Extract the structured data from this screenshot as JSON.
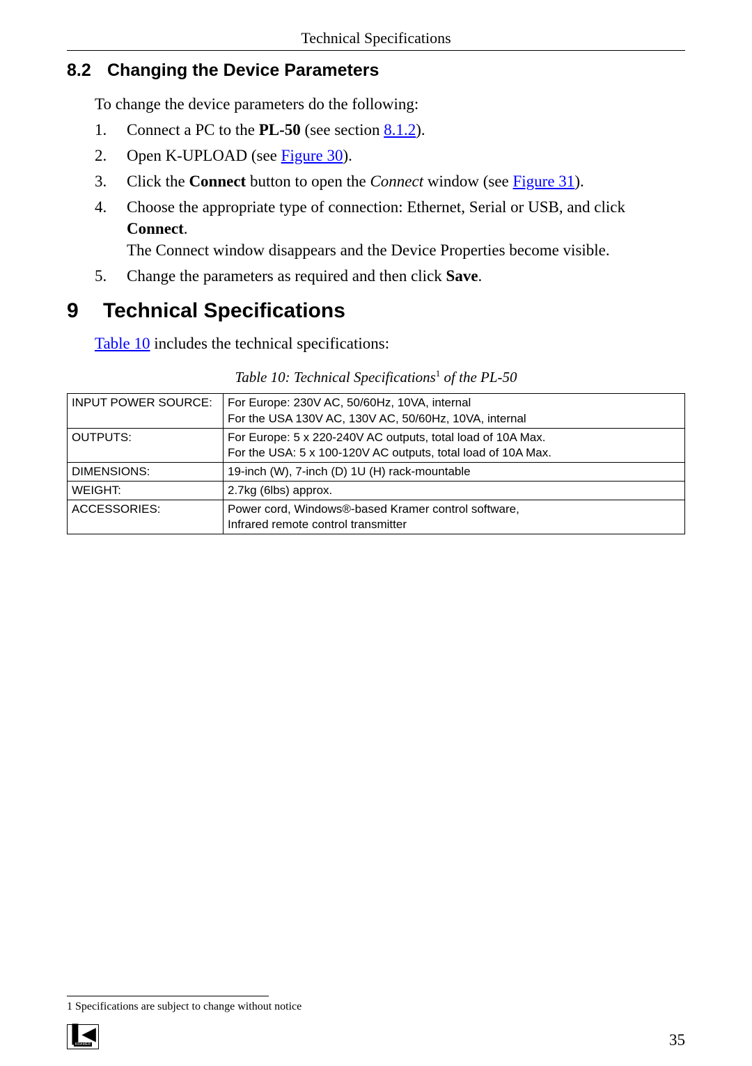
{
  "header": {
    "title": "Technical Specifications"
  },
  "section82": {
    "number": "8.2",
    "title": "Changing the Device Parameters"
  },
  "intro82": "To change the device parameters do the following:",
  "steps": [
    {
      "num": "1.",
      "pre": "Connect a PC to the ",
      "bold": "PL-50",
      "mid": " (see section ",
      "link": "8.1.2",
      "post": ")."
    },
    {
      "num": "2.",
      "pre": "Open K-UPLOAD (see ",
      "link": "Figure 30",
      "post": ")."
    },
    {
      "num": "3.",
      "pre": "Click the ",
      "bold": "Connect",
      "mid": " button to open the ",
      "italic": "Connect",
      "mid2": " window (see ",
      "link": "Figure 31",
      "post": ")."
    },
    {
      "num": "4.",
      "line1pre": "Choose the appropriate type of connection: Ethernet, Serial or USB, and click ",
      "line1bold": "Connect",
      "line1post": ".",
      "line2": "The Connect window disappears and the Device Properties become visible."
    },
    {
      "num": "5.",
      "pre": "Change the parameters as required and then click ",
      "bold": "Save",
      "post": "."
    }
  ],
  "section9": {
    "number": "9",
    "title": "Technical Specifications"
  },
  "intro9": {
    "link": "Table 10",
    "post": " includes the technical specifications:"
  },
  "tableCaption": {
    "pre": "Table 10: Technical Specifications",
    "sup": "1",
    "post": " of the PL-50"
  },
  "specs": {
    "rows": [
      {
        "label": "INPUT POWER SOURCE:",
        "value": "For Europe: 230V AC, 50/60Hz, 10VA, internal\nFor the USA 130V AC, 130V AC, 50/60Hz, 10VA, internal"
      },
      {
        "label": "OUTPUTS:",
        "value": "For Europe: 5 x 220-240V AC outputs, total load of 10A Max.\nFor the USA: 5 x 100-120V AC outputs, total load of 10A Max."
      },
      {
        "label": "DIMENSIONS:",
        "value": "19-inch (W), 7-inch (D) 1U (H) rack-mountable"
      },
      {
        "label": "WEIGHT:",
        "value": "2.7kg (6lbs) approx."
      },
      {
        "label": "ACCESSORIES:",
        "value": "Power cord, Windows®-based Kramer control software,\nInfrared remote control transmitter"
      }
    ]
  },
  "footnote": "1 Specifications are subject to change without notice",
  "pageNumber": "35",
  "logoSub": "KRAMER"
}
